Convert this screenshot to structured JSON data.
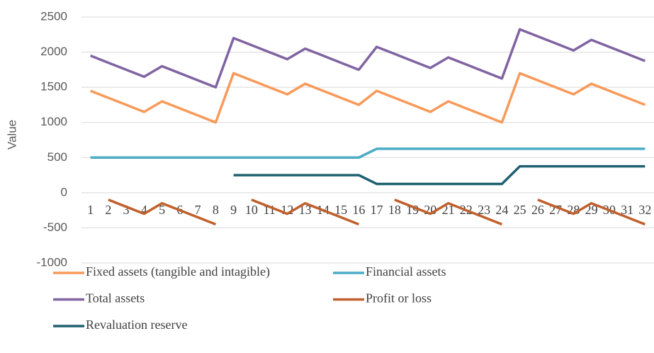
{
  "chart_data": {
    "type": "line",
    "y_label": "Value",
    "categories": [
      "1",
      "2",
      "3",
      "4",
      "5",
      "6",
      "7",
      "8",
      "9",
      "10",
      "11",
      "12",
      "13",
      "14",
      "15",
      "16",
      "17",
      "18",
      "19",
      "20",
      "21",
      "22",
      "23",
      "24",
      "25",
      "26",
      "27",
      "28",
      "29",
      "30",
      "31",
      "32"
    ],
    "ylim": [
      -1000,
      2500
    ],
    "yticks": [
      -1000,
      -500,
      0,
      500,
      1000,
      1500,
      2000,
      2500
    ],
    "grid": true,
    "legend": "bottom",
    "series": [
      {
        "name": "Fixed assets (tangible and intagible)",
        "color": "#f79a5a",
        "values": [
          1450,
          1350,
          1250,
          1150,
          1300,
          1200,
          1100,
          1000,
          1700,
          1600,
          1500,
          1400,
          1550,
          1450,
          1350,
          1250,
          1450,
          1350,
          1250,
          1150,
          1300,
          1200,
          1100,
          1000,
          1700,
          1600,
          1500,
          1400,
          1550,
          1450,
          1350,
          1250
        ]
      },
      {
        "name": "Financial assets",
        "color": "#4bacc6",
        "values": [
          500,
          500,
          500,
          500,
          500,
          500,
          500,
          500,
          500,
          500,
          500,
          500,
          500,
          500,
          500,
          500,
          625,
          625,
          625,
          625,
          625,
          625,
          625,
          625,
          625,
          625,
          625,
          625,
          625,
          625,
          625,
          625
        ]
      },
      {
        "name": "Total assets",
        "color": "#8064a2",
        "values": [
          1950,
          1850,
          1750,
          1650,
          1800,
          1700,
          1600,
          1500,
          2200,
          2100,
          2000,
          1900,
          2050,
          1950,
          1850,
          1750,
          2075,
          1975,
          1875,
          1775,
          1925,
          1825,
          1725,
          1625,
          2325,
          2225,
          2125,
          2025,
          2175,
          2075,
          1975,
          1875
        ]
      },
      {
        "name": "Profit or loss",
        "color": "#c0602c",
        "values": [
          null,
          -100,
          -200,
          -300,
          -150,
          -250,
          -350,
          -450,
          null,
          -100,
          -200,
          -300,
          -150,
          -250,
          -350,
          -450,
          null,
          -100,
          -200,
          -300,
          -150,
          -250,
          -350,
          -450,
          null,
          -100,
          -200,
          -300,
          -150,
          -250,
          -350,
          -450
        ]
      },
      {
        "name": "Revaluation reserve",
        "color": "#1f6170",
        "values": [
          null,
          null,
          null,
          null,
          null,
          null,
          null,
          null,
          250,
          250,
          250,
          250,
          250,
          250,
          250,
          250,
          125,
          125,
          125,
          125,
          125,
          125,
          125,
          125,
          375,
          375,
          375,
          375,
          375,
          375,
          375,
          375
        ]
      }
    ]
  }
}
